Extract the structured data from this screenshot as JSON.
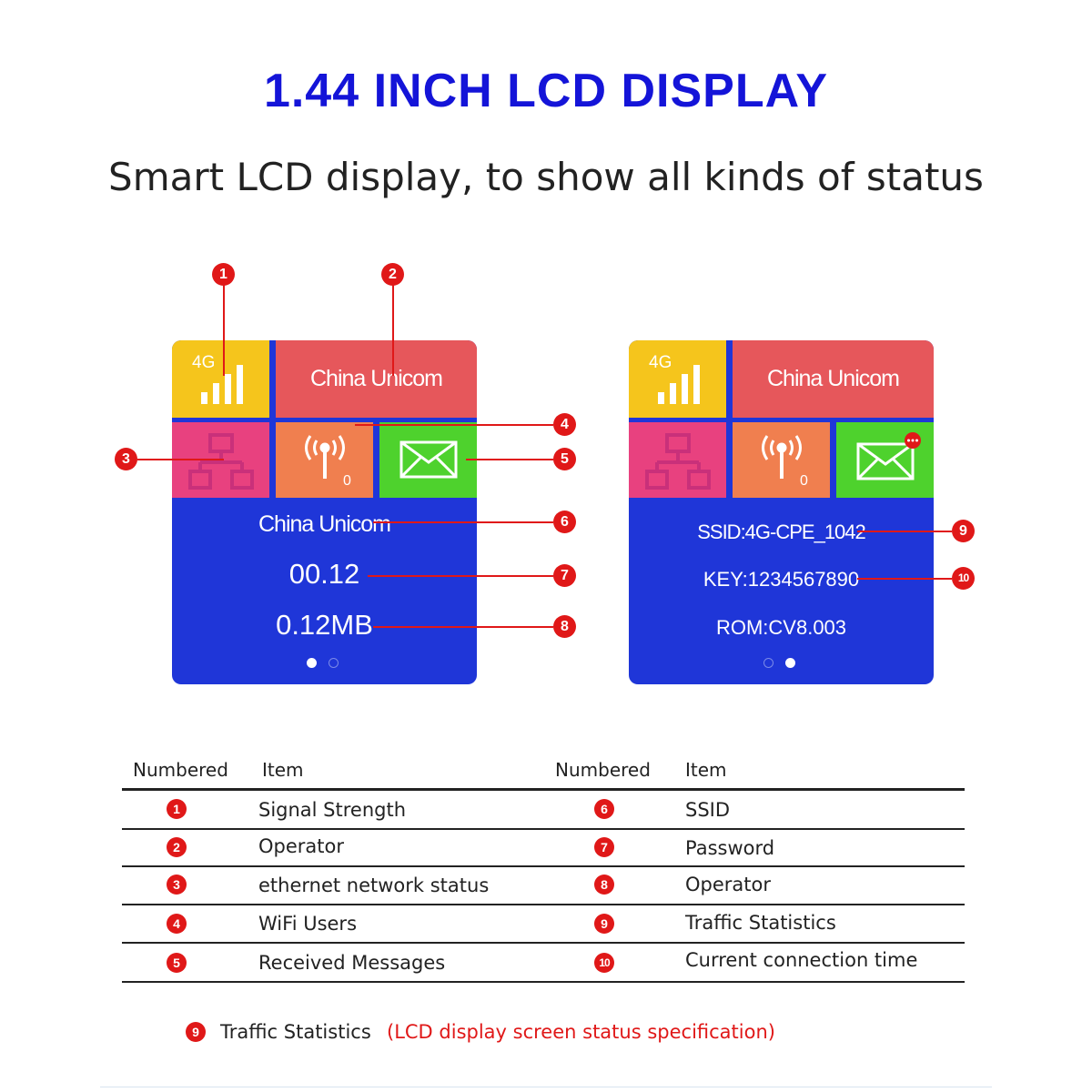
{
  "header": {
    "title": "1.44 INCH LCD DISPLAY",
    "subtitle": "Smart LCD display, to show all kinds of status"
  },
  "screens": {
    "left": {
      "signal_label": "4G",
      "operator_tile": "China Unicom",
      "wifi_users": "0",
      "line1": "China Unicom",
      "line2": "00.12",
      "line3": "0.12MB",
      "active_page": 1
    },
    "right": {
      "signal_label": "4G",
      "operator_tile": "China Unicom",
      "wifi_users": "0",
      "line1": "SSID:4G-CPE_1042",
      "line2": "KEY:1234567890",
      "line3": "ROM:CV8.003",
      "active_page": 2
    }
  },
  "markers": [
    "1",
    "2",
    "3",
    "4",
    "5",
    "6",
    "7",
    "8",
    "9",
    "10"
  ],
  "table": {
    "headers": [
      "Numbered",
      "Item",
      "Numbered",
      "Item"
    ],
    "rows": [
      {
        "n1": "1",
        "item1": "Signal Strength",
        "n2": "6",
        "item2": "SSID"
      },
      {
        "n1": "2",
        "item1": "Operator",
        "n2": "7",
        "item2": "Password"
      },
      {
        "n1": "3",
        "item1": "ethernet network status",
        "n2": "8",
        "item2": "Operator"
      },
      {
        "n1": "4",
        "item1": "WiFi Users",
        "n2": "9",
        "item2": "Traffic Statistics"
      },
      {
        "n1": "5",
        "item1": "Received Messages",
        "n2": "10",
        "item2": "Current connection time"
      }
    ]
  },
  "footnote": {
    "number": "9",
    "label": "Traffic Statistics",
    "note": "(LCD display screen status specification)"
  },
  "colors": {
    "title": "#1414d8",
    "marker": "#e01818",
    "screen_bg": "#1f36d8",
    "tile_yellow": "#f5c51c",
    "tile_red": "#e6575b",
    "tile_pink": "#e8417f",
    "tile_orange": "#f07f4f",
    "tile_green": "#4ed22d"
  },
  "icons": [
    "signal-bars-icon",
    "ethernet-network-icon",
    "wifi-antenna-icon",
    "envelope-icon",
    "new-message-badge-icon"
  ]
}
